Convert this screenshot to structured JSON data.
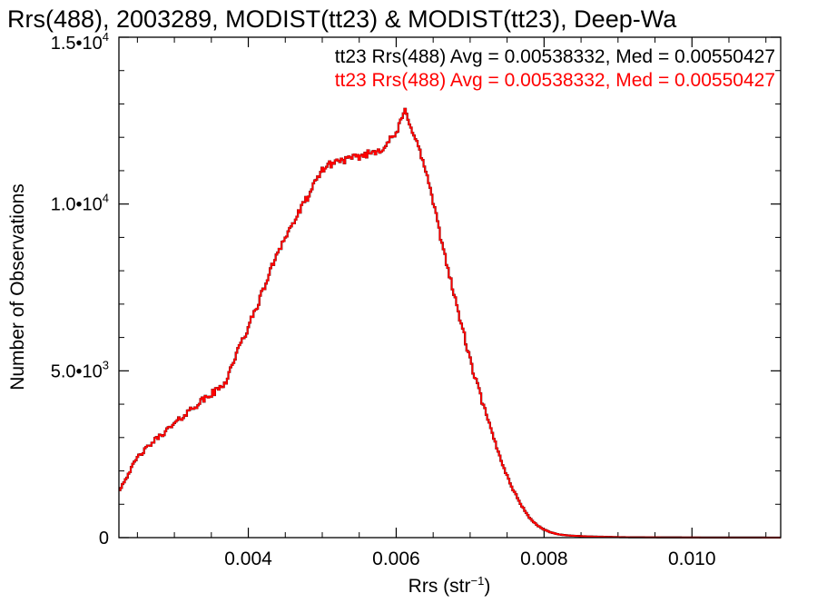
{
  "chart_data": {
    "type": "line",
    "step": true,
    "title": "Rrs(488), 2003289, MODIST(tt23) & MODIST(tt23), Deep-Wa",
    "xlabel": "Rrs (str",
    "xlabel_sup": "−1",
    "xlabel_close": ")",
    "ylabel": "Number of Observations",
    "xlim": [
      0.00225,
      0.0112
    ],
    "ylim": [
      0,
      15000
    ],
    "xticks": [
      {
        "value": 0.004,
        "label": "0.004"
      },
      {
        "value": 0.006,
        "label": "0.006"
      },
      {
        "value": 0.008,
        "label": "0.008"
      },
      {
        "value": 0.01,
        "label": "0.010"
      }
    ],
    "yticks": [
      {
        "value": 0,
        "mant": "0",
        "exp": ""
      },
      {
        "value": 5000,
        "mant": "5.0•10",
        "exp": "3"
      },
      {
        "value": 10000,
        "mant": "1.0•10",
        "exp": "4"
      },
      {
        "value": 15000,
        "mant": "1.5•10",
        "exp": "4"
      }
    ],
    "annotations": [
      {
        "text": "tt23 Rrs(488) Avg = 0.00538332, Med = 0.00550427",
        "color": "#000000"
      },
      {
        "text": "tt23 Rrs(488) Avg = 0.00538332, Med = 0.00550427",
        "color": "#ff0000"
      }
    ],
    "series": [
      {
        "color": "#000000",
        "x": [
          0.00225,
          0.0025,
          0.00275,
          0.003,
          0.00325,
          0.0035,
          0.0036,
          0.0037,
          0.0038,
          0.004,
          0.0042,
          0.0044,
          0.0046,
          0.0048,
          0.00495,
          0.005,
          0.0052,
          0.0054,
          0.0056,
          0.0058,
          0.006,
          0.00612,
          0.0062,
          0.0063,
          0.0064,
          0.0065,
          0.0066,
          0.0067,
          0.0068,
          0.0069,
          0.007,
          0.0071,
          0.0072,
          0.0073,
          0.0074,
          0.0075,
          0.0076,
          0.0077,
          0.0078,
          0.0079,
          0.008,
          0.0081,
          0.0082,
          0.0083,
          0.0084,
          0.0086,
          0.0088,
          0.009,
          0.0092,
          0.0095,
          0.01,
          0.0105,
          0.0112
        ],
        "values": [
          1400,
          2400,
          2950,
          3400,
          3900,
          4300,
          4450,
          4700,
          5300,
          6300,
          7400,
          8600,
          9400,
          10200,
          10800,
          11050,
          11300,
          11350,
          11500,
          11650,
          12100,
          12800,
          12350,
          11700,
          11000,
          10050,
          9000,
          8100,
          7100,
          6250,
          5300,
          4550,
          3800,
          3100,
          2450,
          1850,
          1350,
          950,
          600,
          380,
          240,
          150,
          95,
          70,
          55,
          35,
          25,
          15,
          10,
          8,
          5,
          3,
          2
        ]
      },
      {
        "color": "#ff0000",
        "x": [
          0.00225,
          0.0025,
          0.00275,
          0.003,
          0.00325,
          0.0035,
          0.0036,
          0.0037,
          0.0038,
          0.004,
          0.0042,
          0.0044,
          0.0046,
          0.0048,
          0.00495,
          0.005,
          0.0052,
          0.0054,
          0.0056,
          0.0058,
          0.006,
          0.00612,
          0.0062,
          0.0063,
          0.0064,
          0.0065,
          0.0066,
          0.0067,
          0.0068,
          0.0069,
          0.007,
          0.0071,
          0.0072,
          0.0073,
          0.0074,
          0.0075,
          0.0076,
          0.0077,
          0.0078,
          0.0079,
          0.008,
          0.0081,
          0.0082,
          0.0083,
          0.0084,
          0.0086,
          0.0088,
          0.009,
          0.0092,
          0.0095,
          0.01,
          0.0105,
          0.0112
        ],
        "values": [
          1400,
          2400,
          2950,
          3400,
          3900,
          4300,
          4450,
          4700,
          5300,
          6300,
          7400,
          8600,
          9400,
          10200,
          10800,
          11050,
          11300,
          11350,
          11500,
          11650,
          12100,
          12800,
          12350,
          11700,
          11000,
          10050,
          9000,
          8100,
          7100,
          6250,
          5300,
          4550,
          3800,
          3100,
          2450,
          1850,
          1350,
          950,
          600,
          380,
          240,
          150,
          95,
          70,
          55,
          35,
          25,
          15,
          10,
          8,
          5,
          3,
          2
        ]
      }
    ]
  }
}
